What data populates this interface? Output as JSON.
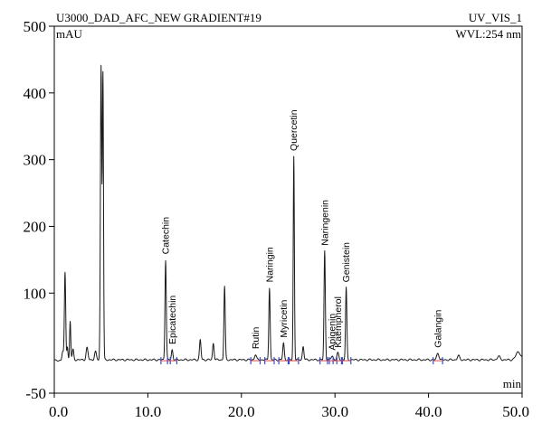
{
  "header": {
    "sample": "U3000_DAD_AFC_NEW GRADIENT#19",
    "channel": "UV_VIS_1",
    "y_unit": "mAU",
    "wavelength": "WVL:254 nm",
    "x_unit": "min"
  },
  "chart_data": {
    "type": "line",
    "title": "",
    "xlabel": "min",
    "ylabel": "mAU",
    "xlim": [
      0,
      50
    ],
    "ylim": [
      -50,
      500
    ],
    "x_ticks": [
      "0.0",
      "10.0",
      "20.0",
      "30.0",
      "40.0",
      "50.0"
    ],
    "y_ticks": [
      "-50",
      "100",
      "200",
      "300",
      "400",
      "500"
    ],
    "grid": false,
    "baseline": 0,
    "peaks": [
      {
        "rt": 0.9,
        "height": 13,
        "width": 0.08
      },
      {
        "rt": 1.15,
        "height": 130,
        "width": 0.07
      },
      {
        "rt": 1.4,
        "height": 20,
        "width": 0.06
      },
      {
        "rt": 1.7,
        "height": 58,
        "width": 0.06
      },
      {
        "rt": 2.0,
        "height": 15,
        "width": 0.08
      },
      {
        "rt": 3.5,
        "height": 18,
        "width": 0.1
      },
      {
        "rt": 4.4,
        "height": 12,
        "width": 0.1
      },
      {
        "rt": 5.0,
        "height": 440,
        "width": 0.07
      },
      {
        "rt": 5.2,
        "height": 425,
        "width": 0.06
      },
      {
        "rt": 11.9,
        "height": 150,
        "width": 0.07,
        "label": "Catechin"
      },
      {
        "rt": 12.6,
        "height": 15,
        "width": 0.08,
        "label": "Epicatechin"
      },
      {
        "rt": 15.6,
        "height": 30,
        "width": 0.08
      },
      {
        "rt": 17.0,
        "height": 25,
        "width": 0.08
      },
      {
        "rt": 18.2,
        "height": 110,
        "width": 0.07
      },
      {
        "rt": 21.5,
        "height": 8,
        "width": 0.1,
        "label": "Rutin"
      },
      {
        "rt": 23.0,
        "height": 108,
        "width": 0.07,
        "label": "Naringin"
      },
      {
        "rt": 24.5,
        "height": 25,
        "width": 0.08,
        "label": "Myricetin"
      },
      {
        "rt": 25.6,
        "height": 305,
        "width": 0.06,
        "label": "Quercetin"
      },
      {
        "rt": 26.6,
        "height": 20,
        "width": 0.08
      },
      {
        "rt": 28.9,
        "height": 163,
        "width": 0.07,
        "label": "Naringenin"
      },
      {
        "rt": 29.7,
        "height": 6,
        "width": 0.1,
        "label": "Apigenin"
      },
      {
        "rt": 30.3,
        "height": 10,
        "width": 0.1,
        "label": "Kaempherol"
      },
      {
        "rt": 31.2,
        "height": 108,
        "width": 0.07,
        "label": "Genistein"
      },
      {
        "rt": 41.0,
        "height": 10,
        "width": 0.12,
        "label": "Galangin"
      },
      {
        "rt": 43.2,
        "height": 6,
        "width": 0.12
      },
      {
        "rt": 47.5,
        "height": 5,
        "width": 0.15
      },
      {
        "rt": 49.6,
        "height": 12,
        "width": 0.25
      }
    ]
  }
}
